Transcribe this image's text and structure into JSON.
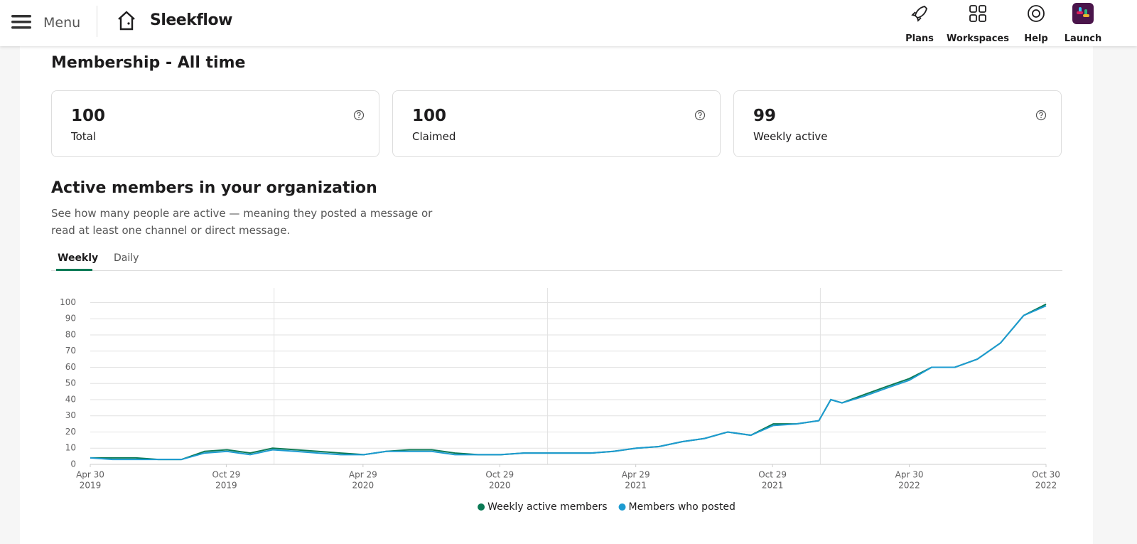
{
  "header": {
    "menu": "Menu",
    "brand": "Sleekflow",
    "nav": [
      "Plans",
      "Workspaces",
      "Help",
      "Launch"
    ]
  },
  "membership": {
    "title": "Membership - All time",
    "stats": [
      {
        "value": 100,
        "label": "Total"
      },
      {
        "value": 100,
        "label": "Claimed"
      },
      {
        "value": 99,
        "label": "Weekly active"
      }
    ]
  },
  "activity": {
    "title": "Active members in your organization",
    "description": "See how many people are active — meaning they posted a message or read at least one channel or direct message.",
    "tabs": [
      "Weekly",
      "Daily"
    ],
    "active_tab": 0
  },
  "chart_data": {
    "type": "line",
    "x": [
      "2019-04-30",
      "2019-05-30",
      "2019-06-30",
      "2019-07-30",
      "2019-08-30",
      "2019-09-30",
      "2019-10-30",
      "2019-11-30",
      "2019-12-30",
      "2020-01-30",
      "2020-02-29",
      "2020-03-30",
      "2020-04-30",
      "2020-05-30",
      "2020-06-30",
      "2020-07-30",
      "2020-08-30",
      "2020-09-30",
      "2020-10-30",
      "2020-11-30",
      "2020-12-30",
      "2021-01-30",
      "2021-02-28",
      "2021-03-30",
      "2021-04-30",
      "2021-05-30",
      "2021-06-30",
      "2021-07-30",
      "2021-08-30",
      "2021-09-30",
      "2021-10-30",
      "2021-11-30",
      "2021-12-30",
      "2022-01-15",
      "2022-01-30",
      "2022-02-28",
      "2022-03-30",
      "2022-04-30",
      "2022-05-30",
      "2022-06-30",
      "2022-07-30",
      "2022-08-30",
      "2022-09-30",
      "2022-10-30"
    ],
    "series": [
      {
        "name": "Weekly active members",
        "color": "#0b7a55",
        "values": [
          4,
          4,
          4,
          3,
          3,
          8,
          9,
          7,
          10,
          9,
          8,
          7,
          6,
          8,
          9,
          9,
          7,
          6,
          6,
          7,
          7,
          7,
          7,
          8,
          10,
          11,
          14,
          16,
          20,
          18,
          25,
          25,
          27,
          40,
          38,
          43,
          48,
          53,
          60,
          60,
          65,
          75,
          92,
          99
        ]
      },
      {
        "name": "Members who posted",
        "color": "#1d9bd1",
        "values": [
          4,
          3,
          3,
          3,
          3,
          7,
          8,
          6,
          9,
          8,
          7,
          6,
          6,
          8,
          8,
          8,
          6,
          6,
          6,
          7,
          7,
          7,
          7,
          8,
          10,
          11,
          14,
          16,
          20,
          18,
          24,
          25,
          27,
          40,
          38,
          42,
          47,
          52,
          60,
          60,
          65,
          75,
          92,
          98
        ]
      }
    ],
    "xlim": [
      "2019-04-30",
      "2022-10-30"
    ],
    "xticks": [
      {
        "value": "2019-04-30",
        "label": "Apr 30",
        "year": "2019"
      },
      {
        "value": "2019-10-29",
        "label": "Oct 29",
        "year": "2019"
      },
      {
        "value": "2020-04-29",
        "label": "Apr 29",
        "year": "2020"
      },
      {
        "value": "2020-10-29",
        "label": "Oct 29",
        "year": "2020"
      },
      {
        "value": "2021-04-29",
        "label": "Apr 29",
        "year": "2021"
      },
      {
        "value": "2021-10-29",
        "label": "Oct 29",
        "year": "2021"
      },
      {
        "value": "2022-04-30",
        "label": "Apr 30",
        "year": "2022"
      },
      {
        "value": "2022-10-30",
        "label": "Oct 30",
        "year": "2022"
      }
    ],
    "ylim": [
      0,
      109
    ],
    "yticks": [
      0,
      10,
      20,
      30,
      40,
      50,
      60,
      70,
      80,
      90,
      100
    ],
    "grid": true,
    "legend": "bottom"
  }
}
